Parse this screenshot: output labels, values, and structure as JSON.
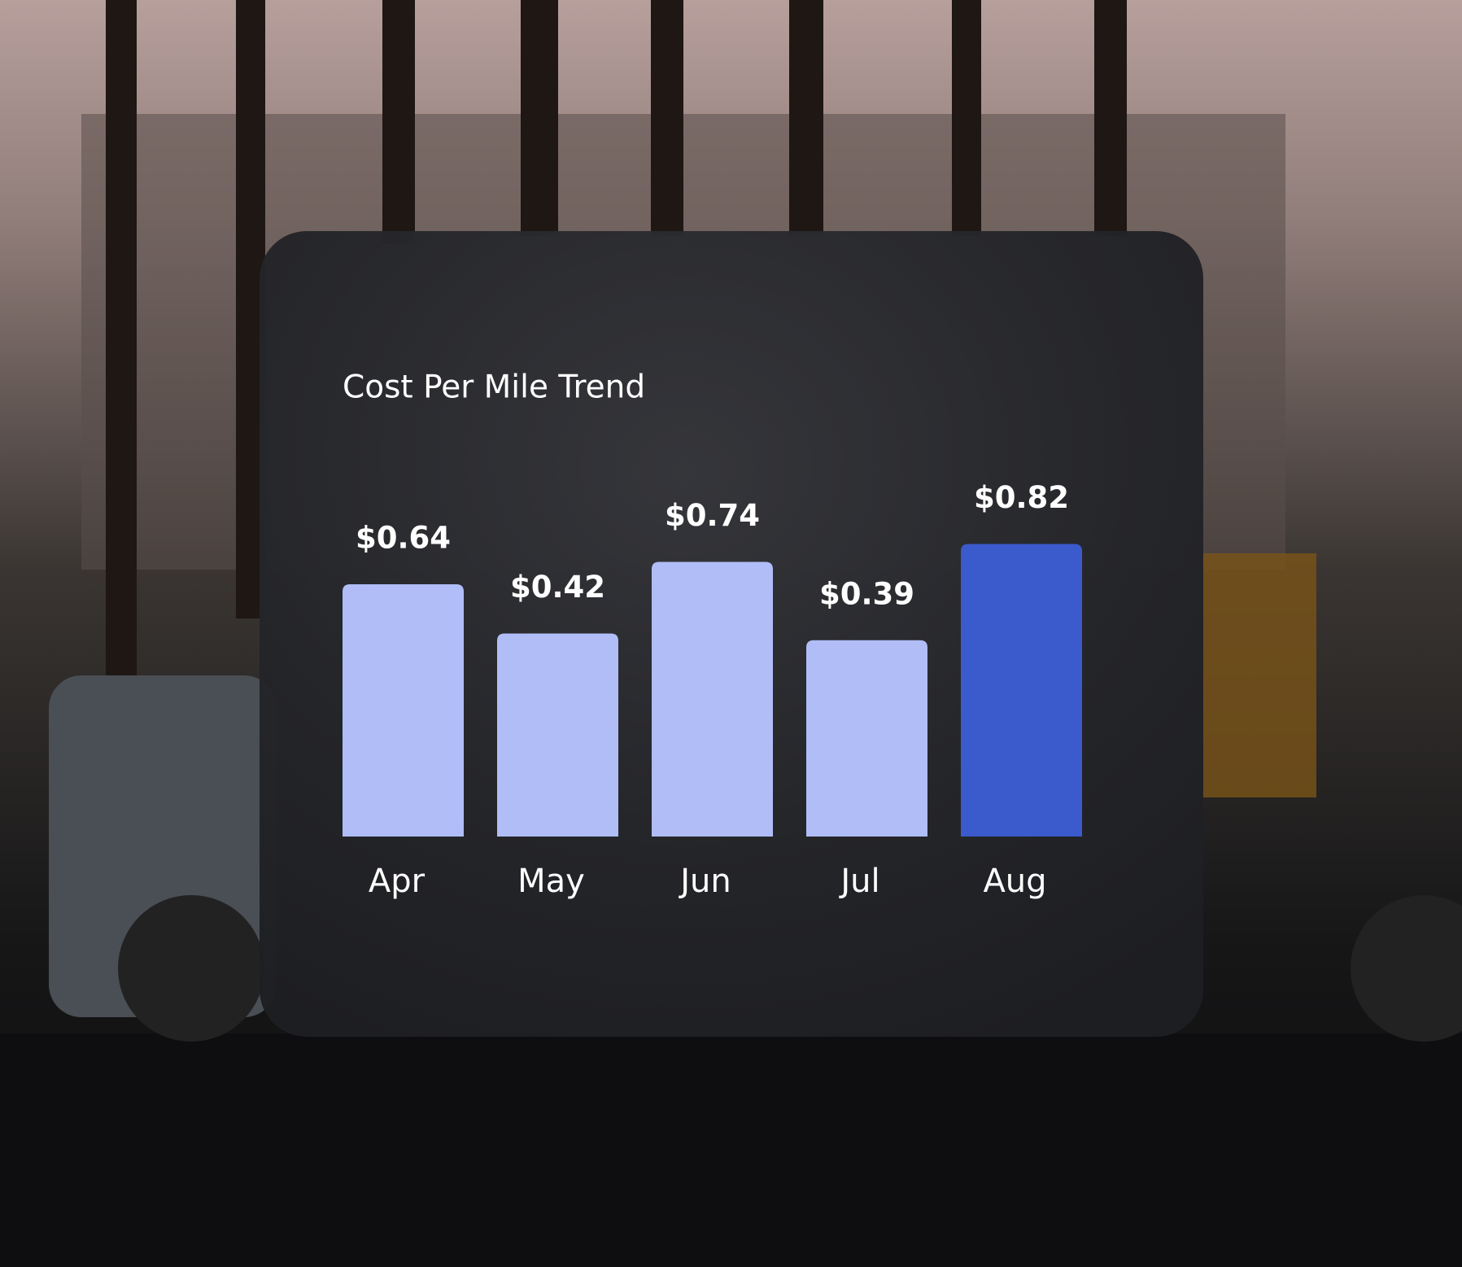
{
  "chart_data": {
    "type": "bar",
    "title": "Cost Per Mile Trend",
    "categories": [
      "Apr",
      "May",
      "Jun",
      "Jul",
      "Aug"
    ],
    "values": [
      0.64,
      0.42,
      0.74,
      0.39,
      0.82
    ],
    "value_labels": [
      "$0.64",
      "$0.42",
      "$0.74",
      "$0.39",
      "$0.82"
    ],
    "colors": [
      "#b0bdf7",
      "#b0bdf7",
      "#b0bdf7",
      "#b0bdf7",
      "#3b5bcc"
    ]
  }
}
